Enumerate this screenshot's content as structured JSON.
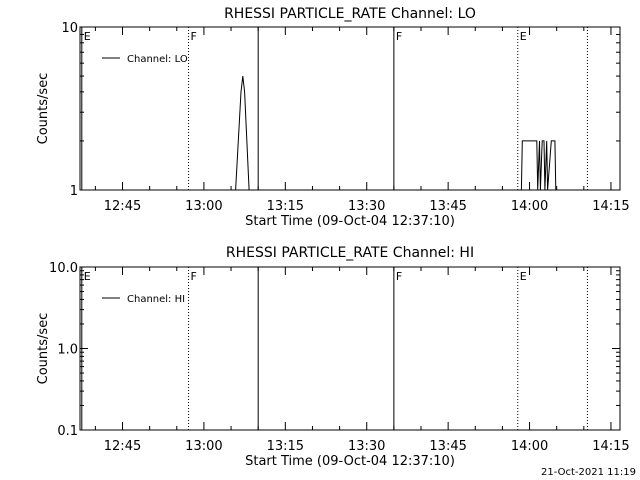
{
  "chart_data": [
    {
      "type": "line",
      "title": "RHESSI PARTICLE_RATE Channel: LO",
      "xlabel": "Start Time (09-Oct-04 12:37:10)",
      "ylabel": "Counts/sec",
      "yscale": "log",
      "ylim": [
        1,
        10
      ],
      "yticks": [
        "1",
        "10"
      ],
      "xlim": [
        "12:37:10",
        "14:16:40"
      ],
      "xticks": [
        "12:45",
        "13:00",
        "13:15",
        "13:30",
        "13:45",
        "14:00",
        "14:15"
      ],
      "grid": false,
      "legend_position": "top-left",
      "series": [
        {
          "name": "Channel: LO",
          "points": [
            [
              "13:05:50",
              1
            ],
            [
              "13:06:50",
              4
            ],
            [
              "13:07:10",
              5
            ],
            [
              "13:07:30",
              4
            ],
            [
              "13:08:20",
              1
            ],
            [
              "13:58:30",
              1
            ],
            [
              "13:58:40",
              2
            ],
            [
              "14:01:20",
              2
            ],
            [
              "14:01:30",
              1
            ],
            [
              "14:01:50",
              2
            ],
            [
              "14:02:00",
              1
            ],
            [
              "14:02:20",
              2
            ],
            [
              "14:02:40",
              2
            ],
            [
              "14:02:50",
              1
            ],
            [
              "14:03:10",
              2
            ],
            [
              "14:03:20",
              1
            ],
            [
              "14:04:00",
              2
            ],
            [
              "14:04:40",
              2
            ],
            [
              "14:04:50",
              1
            ]
          ]
        }
      ],
      "annotations": [
        {
          "label": "E",
          "time": "12:37:30",
          "style": "solid"
        },
        {
          "label": "F",
          "time": "12:57:10",
          "style": "dotted"
        },
        {
          "label": "",
          "time": "13:10:00",
          "style": "solid"
        },
        {
          "label": "F",
          "time": "13:35:00",
          "style": "solid"
        },
        {
          "label": "E",
          "time": "13:57:50",
          "style": "dotted"
        },
        {
          "label": "",
          "time": "14:10:40",
          "style": "dotted"
        }
      ]
    },
    {
      "type": "line",
      "title": "RHESSI PARTICLE_RATE Channel: HI",
      "xlabel": "Start Time (09-Oct-04 12:37:10)",
      "ylabel": "Counts/sec",
      "yscale": "log",
      "ylim": [
        0.1,
        10
      ],
      "yticks": [
        "0.1",
        "1.0",
        "10.0"
      ],
      "xlim": [
        "12:37:10",
        "14:16:40"
      ],
      "xticks": [
        "12:45",
        "13:00",
        "13:15",
        "13:30",
        "13:45",
        "14:00",
        "14:15"
      ],
      "grid": false,
      "legend_position": "top-left",
      "series": [
        {
          "name": "Channel: HI",
          "points": []
        }
      ],
      "annotations": [
        {
          "label": "E",
          "time": "12:37:30",
          "style": "solid"
        },
        {
          "label": "F",
          "time": "12:57:10",
          "style": "dotted"
        },
        {
          "label": "",
          "time": "13:10:00",
          "style": "solid"
        },
        {
          "label": "F",
          "time": "13:35:00",
          "style": "solid"
        },
        {
          "label": "E",
          "time": "13:57:50",
          "style": "dotted"
        },
        {
          "label": "",
          "time": "14:10:40",
          "style": "dotted"
        }
      ]
    }
  ],
  "footer": {
    "timestamp": "21-Oct-2021 11:19"
  }
}
